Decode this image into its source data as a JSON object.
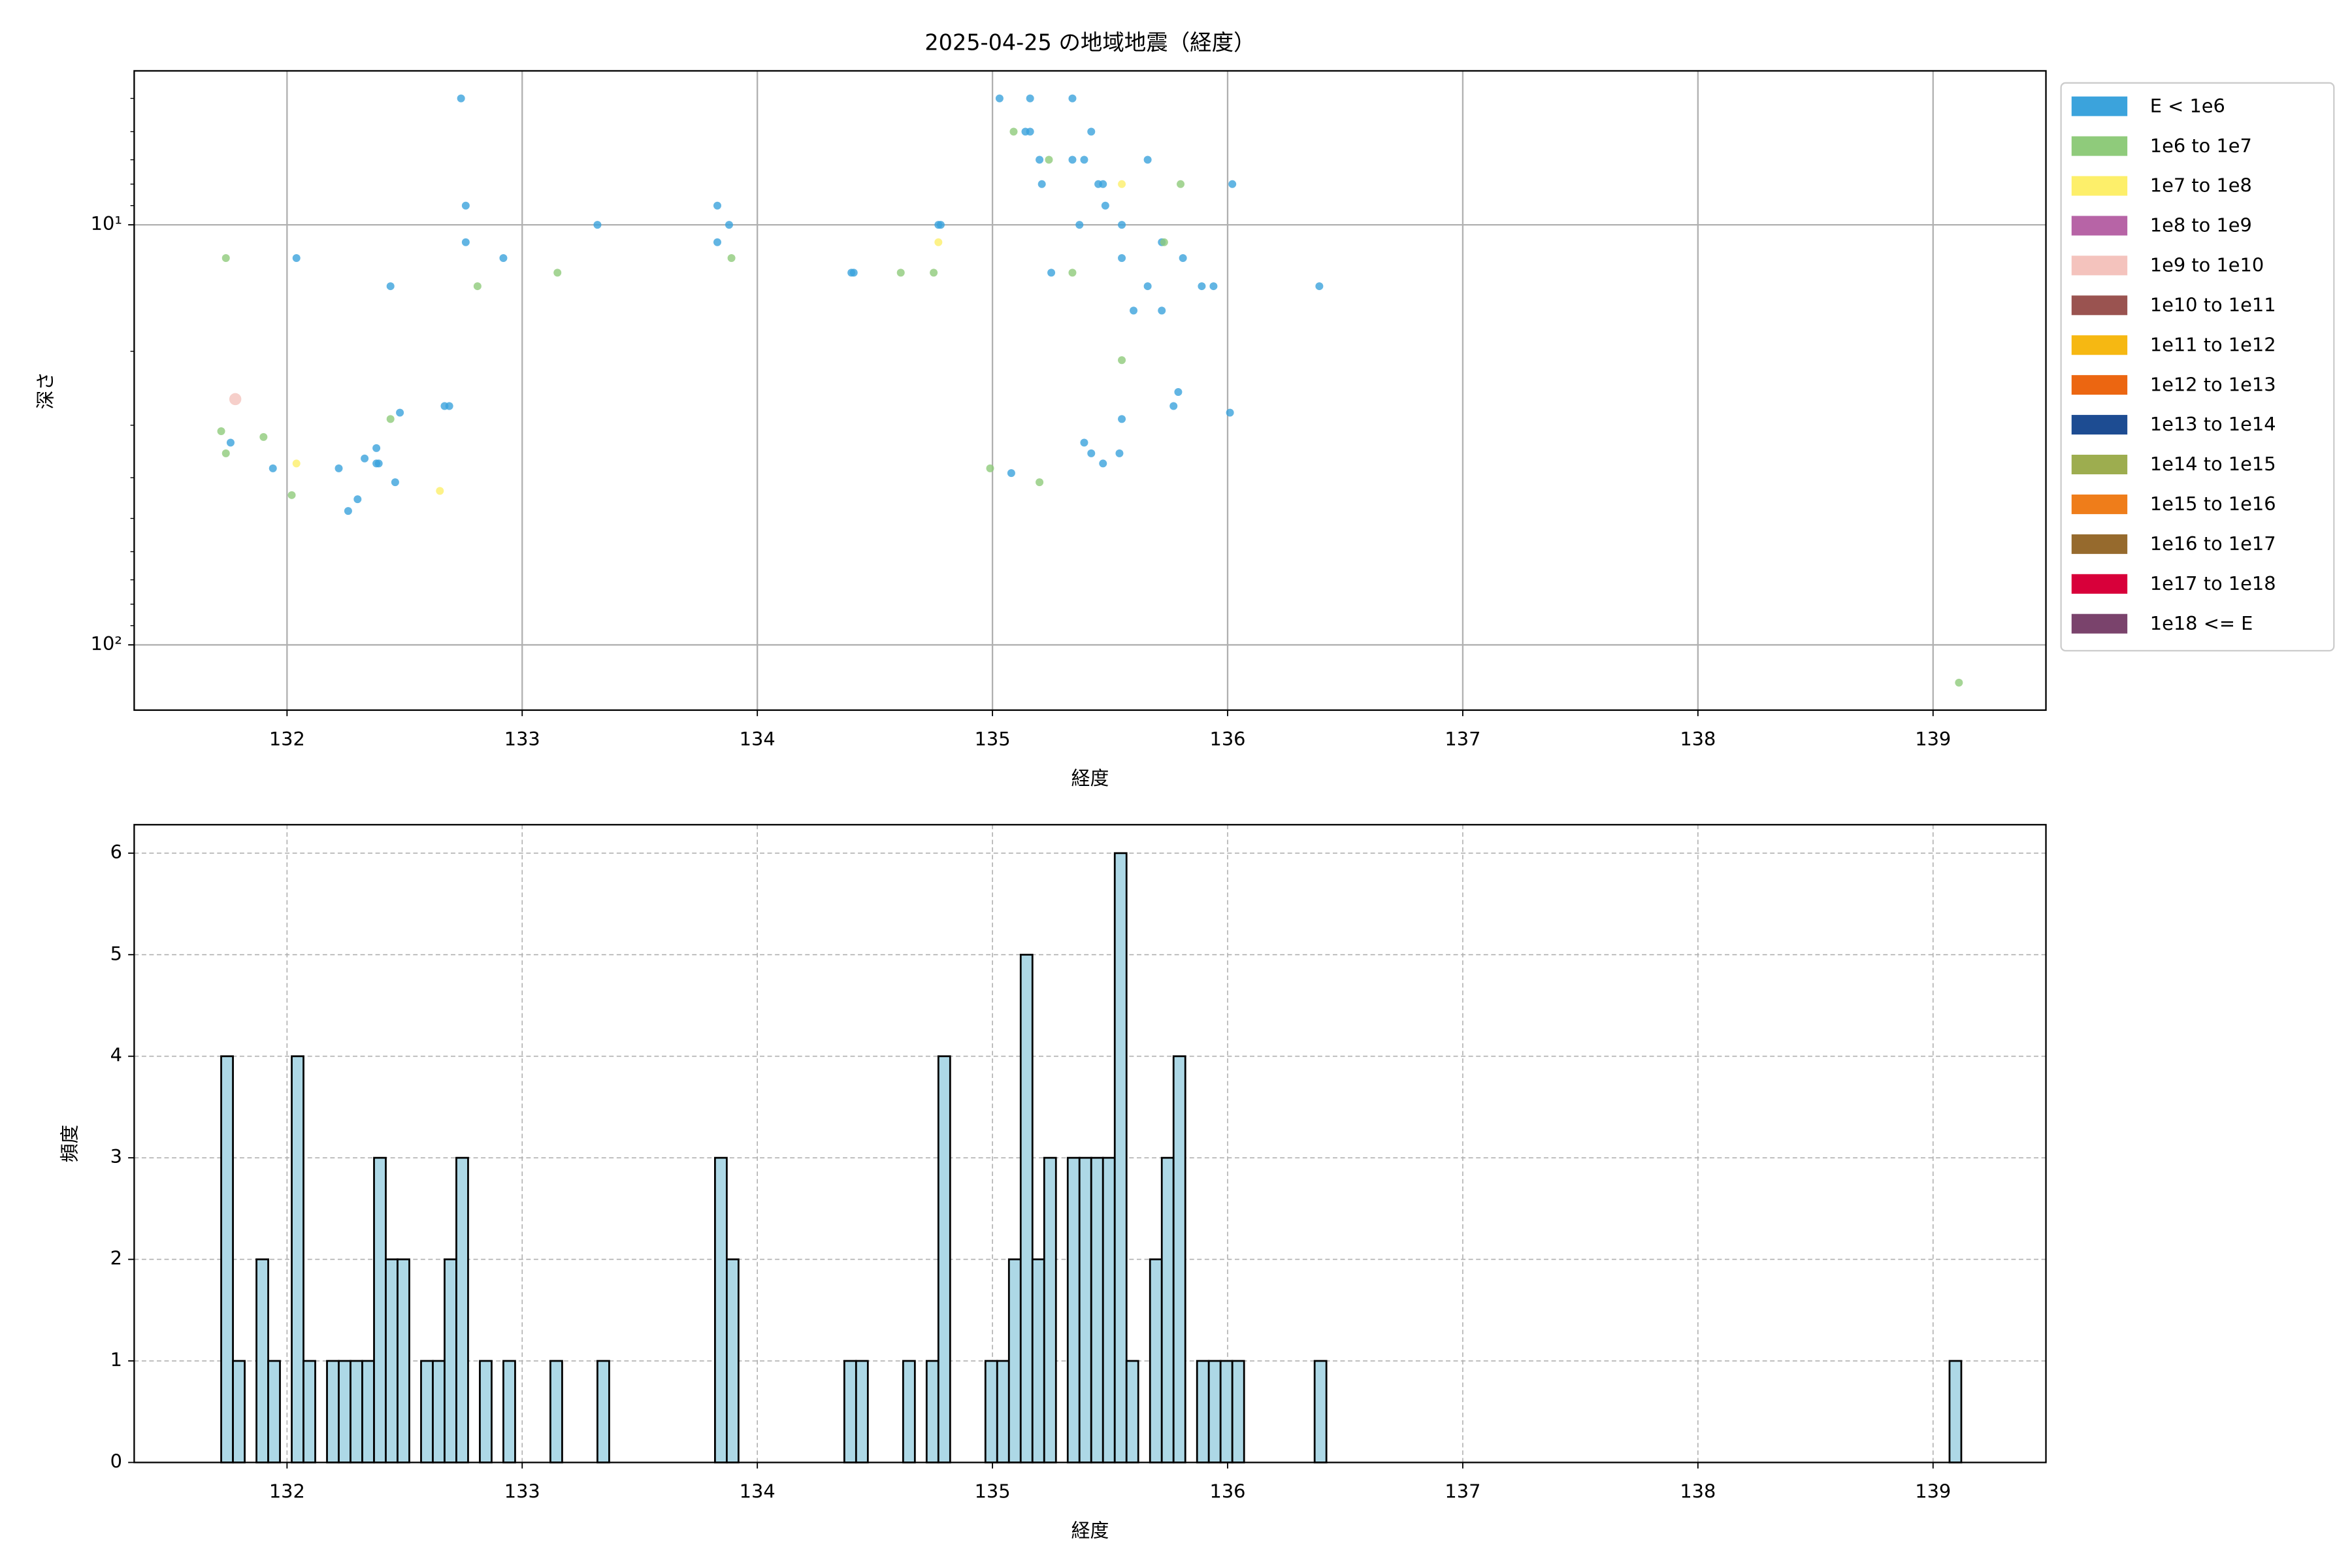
{
  "chart_data": [
    {
      "type": "scatter",
      "title": "2025-04-25 の地域地震（経度）",
      "xlabel": "経度",
      "ylabel": "深さ",
      "xlim": [
        131.35,
        139.48
      ],
      "xticks": [
        132,
        133,
        134,
        135,
        136,
        137,
        138,
        139
      ],
      "ylim": [
        143,
        4.3
      ],
      "log_y": true,
      "yticks": [
        {
          "value": 10,
          "label": "10¹"
        },
        {
          "value": 100,
          "label": "10²"
        }
      ],
      "yminorticks": [
        5,
        6,
        7,
        8,
        9,
        20,
        30,
        40,
        50,
        60,
        70,
        80,
        90
      ],
      "grid": true,
      "legend": "outside right",
      "series": [
        {
          "name": "E < 1e6",
          "color": "#3ba3dc",
          "x": [
            132.74,
            132.76,
            132.76,
            132.92,
            132.44,
            132.04,
            133.32,
            133.83,
            133.83,
            133.88,
            134.41,
            134.4,
            134.77,
            134.78,
            135.03,
            135.16,
            135.34,
            135.14,
            135.16,
            135.42,
            135.2,
            135.34,
            135.39,
            135.66,
            135.21,
            135.45,
            135.47,
            136.02,
            135.48,
            135.37,
            135.55,
            135.72,
            135.25,
            135.55,
            135.81,
            135.66,
            135.89,
            135.94,
            136.39,
            135.6,
            135.72,
            135.79,
            135.77,
            136.01,
            135.55,
            135.39,
            135.42,
            135.54,
            135.47,
            135.08,
            131.76,
            131.94,
            132.22,
            132.26,
            132.3,
            132.33,
            132.38,
            132.38,
            132.39,
            132.48,
            132.46,
            132.67,
            132.69
          ],
          "y": [
            5.0,
            9.0,
            11,
            12,
            14,
            12,
            10,
            9.0,
            11,
            10,
            13,
            13,
            10,
            10,
            5.0,
            5.0,
            5.0,
            6.0,
            6.0,
            6.0,
            7.0,
            7.0,
            7.0,
            7.0,
            8.0,
            8.0,
            8.0,
            8.0,
            9.0,
            10,
            10,
            11,
            13,
            12,
            12,
            14,
            14,
            14,
            14,
            16,
            16,
            25,
            27,
            28,
            29,
            33,
            35,
            35,
            37,
            39,
            33,
            38,
            38,
            48,
            45,
            36,
            34,
            37,
            37,
            28,
            41,
            27,
            27
          ]
        },
        {
          "name": "1e6 to 1e7",
          "color": "#8fcb7b",
          "x": [
            132.81,
            131.74,
            133.15,
            133.89,
            134.61,
            134.75,
            135.09,
            135.24,
            135.8,
            135.73,
            135.34,
            135.55,
            134.99,
            135.2,
            139.11,
            131.72,
            131.74,
            131.9,
            132.02,
            132.44
          ],
          "y": [
            14,
            12,
            13,
            12,
            13,
            13,
            6.0,
            7.0,
            8.0,
            11,
            13,
            21,
            38,
            41,
            123,
            31,
            35,
            32,
            44,
            29
          ]
        },
        {
          "name": "1e7 to 1e8",
          "color": "#fdef6a",
          "x": [
            134.77,
            135.55,
            132.04,
            132.65
          ],
          "y": [
            11,
            8.0,
            37,
            43
          ]
        },
        {
          "name": "1e8 to 1e9",
          "color": "#b764a6",
          "x": [],
          "y": []
        },
        {
          "name": "1e9 to 1e10",
          "color": "#f4c3bd",
          "x": [
            131.78
          ],
          "y": [
            26
          ]
        },
        {
          "name": "1e10 to 1e11",
          "color": "#9a5350",
          "x": [],
          "y": []
        },
        {
          "name": "1e11 to 1e12",
          "color": "#f6b812",
          "x": [],
          "y": []
        },
        {
          "name": "1e12 to 1e13",
          "color": "#ec6611",
          "x": [],
          "y": []
        },
        {
          "name": "1e13 to 1e14",
          "color": "#1d4c92",
          "x": [],
          "y": []
        },
        {
          "name": "1e14 to 1e15",
          "color": "#9dad4f",
          "x": [],
          "y": []
        },
        {
          "name": "1e15 to 1e16",
          "color": "#ef7d1a",
          "x": [],
          "y": []
        },
        {
          "name": "1e16 to 1e17",
          "color": "#966a2d",
          "x": [],
          "y": []
        },
        {
          "name": "1e17 to 1e18",
          "color": "#d8003a",
          "x": [],
          "y": []
        },
        {
          "name": "1e18 <= E",
          "color": "#7a436c",
          "x": [],
          "y": []
        }
      ]
    },
    {
      "type": "histogram",
      "xlabel": "経度",
      "ylabel": "頻度",
      "xlim": [
        131.35,
        139.48
      ],
      "xticks": [
        132,
        133,
        134,
        135,
        136,
        137,
        138,
        139
      ],
      "ylim": [
        0,
        6.28
      ],
      "yticks": [
        0,
        1,
        2,
        3,
        4,
        5,
        6
      ],
      "grid": true,
      "grid_style": "dashed",
      "color": "#add8e6",
      "edgecolor": "#000000",
      "bins": [
        131.72,
        131.77,
        131.82,
        131.87,
        131.92,
        131.97,
        132.02,
        132.07,
        132.12,
        132.17,
        132.22,
        132.27,
        132.32,
        132.37,
        132.42,
        132.47,
        132.52,
        132.57,
        132.62,
        132.67,
        132.72,
        132.77,
        132.82,
        132.87,
        132.92,
        132.97,
        133.02,
        133.07,
        133.12,
        133.17,
        133.22,
        133.27,
        133.32,
        133.37,
        133.42,
        133.47,
        133.52,
        133.57,
        133.62,
        133.67,
        133.72,
        133.77,
        133.82,
        133.87,
        133.92,
        133.97,
        134.02,
        134.07,
        134.12,
        134.17,
        134.22,
        134.27,
        134.32,
        134.37,
        134.42,
        134.47,
        134.52,
        134.57,
        134.62,
        134.67,
        134.72,
        134.77,
        134.82,
        134.87,
        134.92,
        134.97,
        135.02,
        135.07,
        135.12,
        135.17,
        135.22,
        135.27,
        135.32,
        135.37,
        135.42,
        135.47,
        135.52,
        135.57,
        135.62,
        135.67,
        135.72,
        135.77,
        135.82,
        135.87,
        135.92,
        135.97,
        136.02,
        136.07,
        136.12,
        136.17,
        136.22,
        136.27,
        136.32,
        136.37,
        136.42,
        136.47,
        136.52,
        136.57,
        136.62,
        136.67,
        136.72,
        136.77,
        136.82,
        136.87,
        136.92,
        136.97,
        137.02,
        137.07,
        137.12,
        137.17,
        137.22,
        137.27,
        137.32,
        137.37,
        137.42,
        137.47,
        137.52,
        137.57,
        137.62,
        137.67,
        137.72,
        137.77,
        137.82,
        137.87,
        137.92,
        137.97,
        138.02,
        138.07,
        138.12,
        138.17,
        138.22,
        138.27,
        138.32,
        138.37,
        138.42,
        138.47,
        138.52,
        138.57,
        138.62,
        138.67,
        138.72,
        138.77,
        138.82,
        138.87,
        138.92,
        138.97,
        139.02,
        139.07,
        139.12
      ],
      "counts": [
        4,
        1,
        0,
        2,
        1,
        0,
        4,
        1,
        0,
        1,
        1,
        1,
        1,
        3,
        2,
        2,
        0,
        1,
        1,
        2,
        3,
        0,
        1,
        0,
        1,
        0,
        0,
        0,
        1,
        0,
        0,
        0,
        1,
        0,
        0,
        0,
        0,
        0,
        0,
        0,
        0,
        0,
        3,
        2,
        0,
        0,
        0,
        0,
        0,
        0,
        0,
        0,
        0,
        1,
        1,
        0,
        0,
        0,
        1,
        0,
        1,
        4,
        0,
        0,
        0,
        1,
        1,
        2,
        5,
        2,
        3,
        0,
        3,
        3,
        3,
        3,
        6,
        1,
        0,
        2,
        3,
        4,
        0,
        1,
        1,
        1,
        1,
        0,
        0,
        0,
        0,
        0,
        0,
        1,
        0,
        0,
        0,
        0,
        0,
        0,
        0,
        0,
        0,
        0,
        0,
        0,
        0,
        0,
        0,
        0,
        0,
        0,
        0,
        0,
        0,
        0,
        0,
        0,
        0,
        0,
        0,
        0,
        0,
        0,
        0,
        0,
        0,
        0,
        0,
        0,
        0,
        0,
        0,
        0,
        0,
        0,
        0,
        0,
        0,
        0,
        0,
        0,
        0,
        0,
        0,
        0,
        0,
        1
      ]
    }
  ]
}
